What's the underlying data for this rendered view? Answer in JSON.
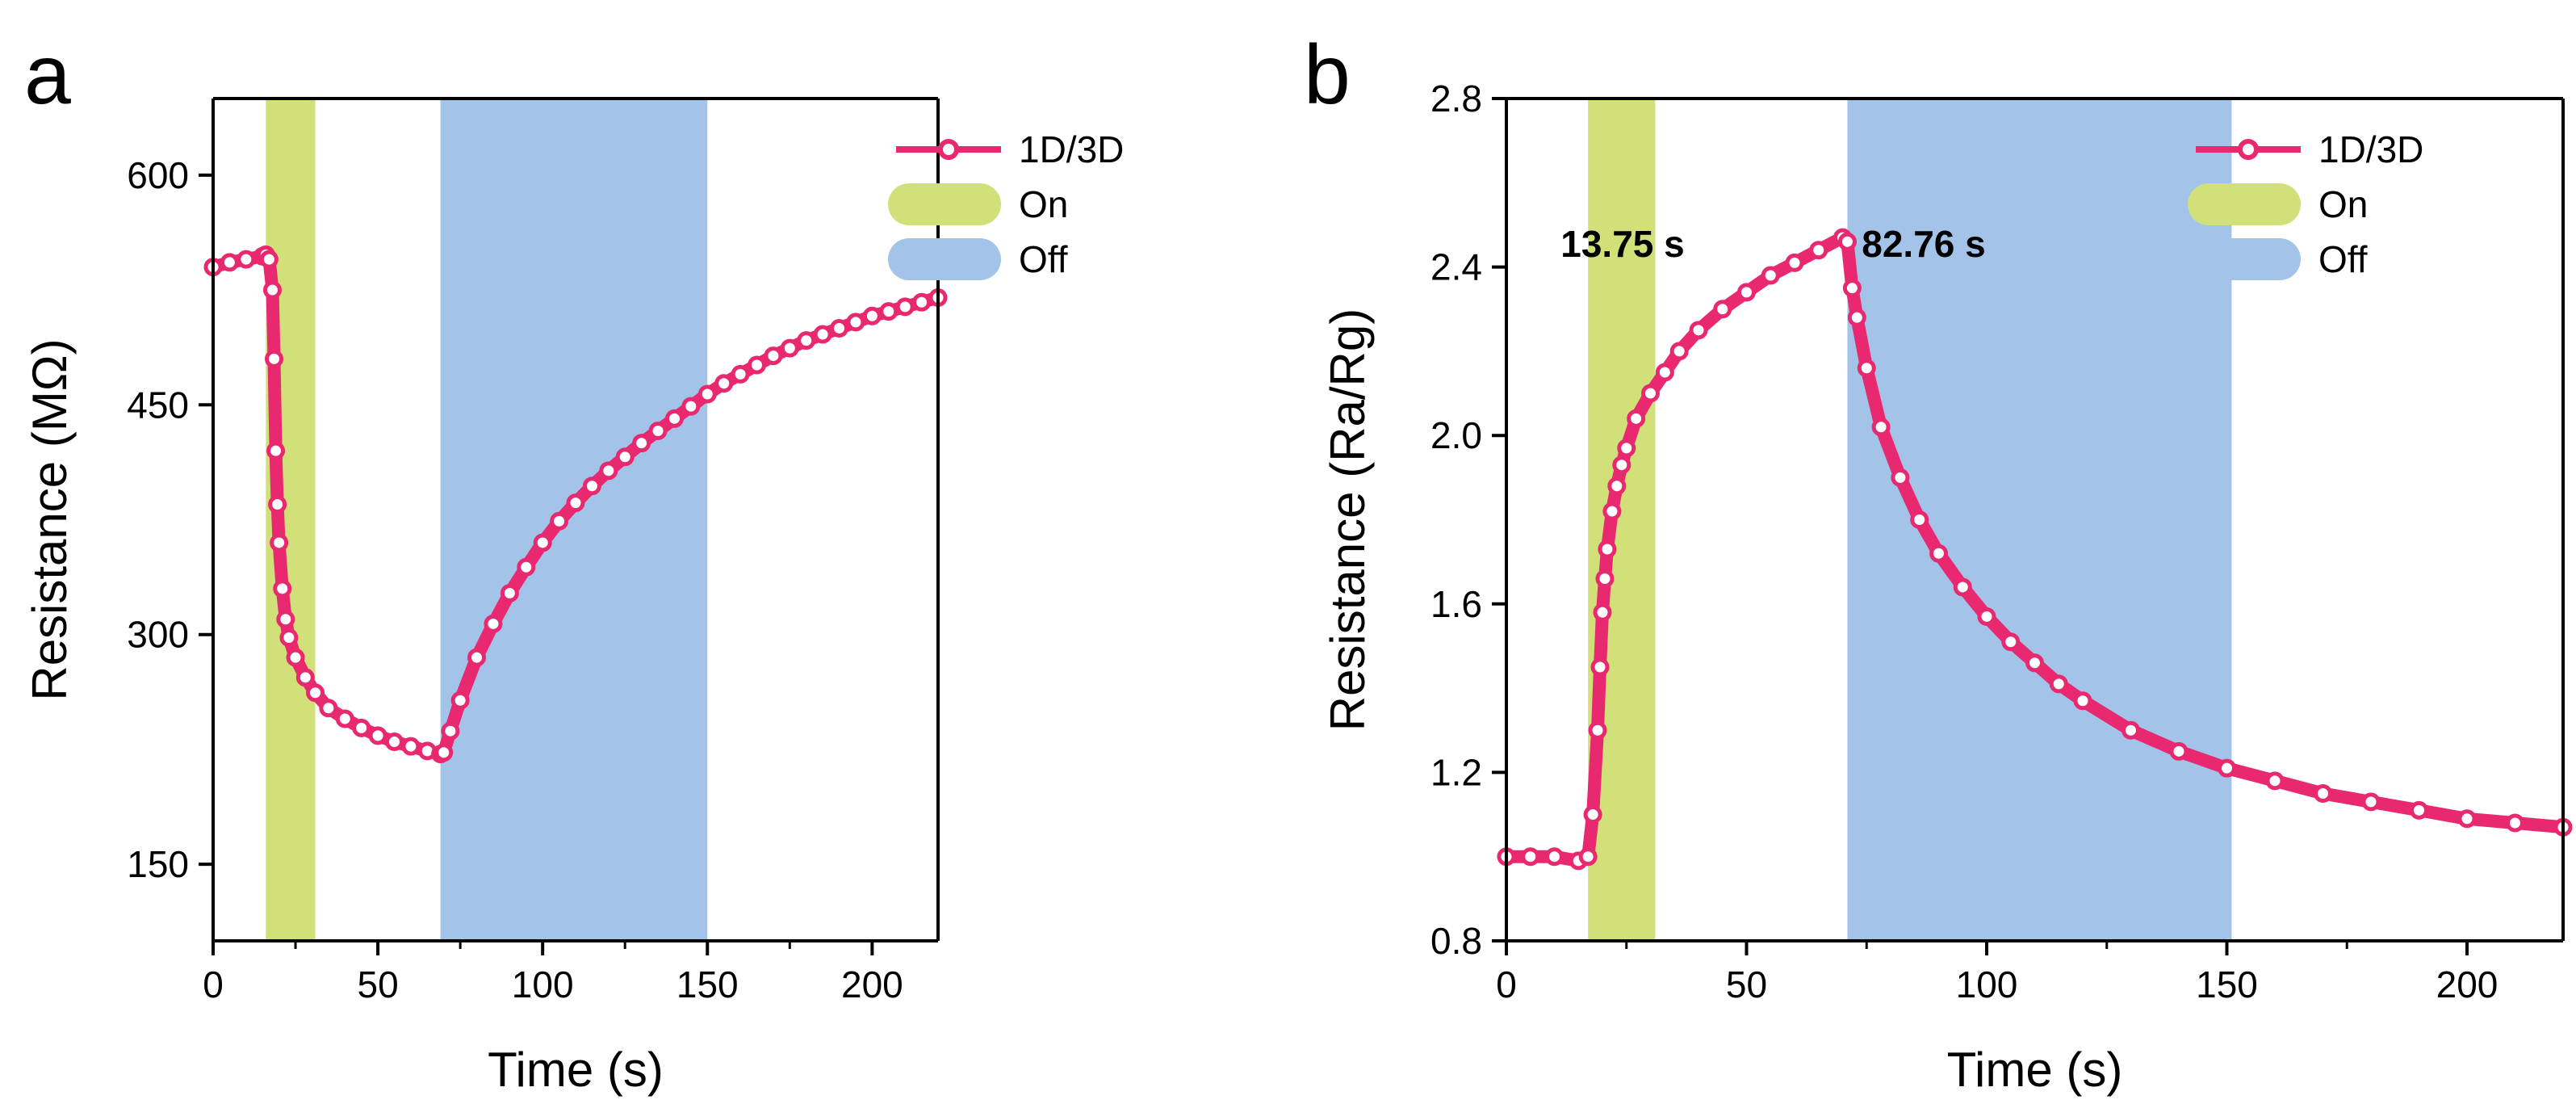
{
  "colors": {
    "series": "#e8296f",
    "on_band": "#d2e07a",
    "off_band": "#a3c4e8",
    "axis": "#000000"
  },
  "chart_data": [
    {
      "panel_label": "a",
      "type": "line",
      "xlabel": "Time (s)",
      "ylabel": "Resistance (MΩ)",
      "xlim": [
        0,
        220
      ],
      "ylim": [
        100,
        650
      ],
      "xticks": [
        0,
        50,
        100,
        150,
        200
      ],
      "yticks": [
        150,
        300,
        450,
        600
      ],
      "grid": false,
      "legend_position": "top-right",
      "legend": {
        "series": "1D/3D",
        "on": "On",
        "off": "Off"
      },
      "bands": [
        {
          "kind": "on",
          "x": [
            16,
            31
          ]
        },
        {
          "kind": "off",
          "x": [
            69,
            150
          ]
        }
      ],
      "annotations": [],
      "series": [
        {
          "name": "1D/3D",
          "x": [
            0,
            5,
            10,
            15,
            16,
            17,
            18,
            18.5,
            19,
            19.5,
            20,
            21,
            22,
            23,
            25,
            28,
            31,
            35,
            40,
            45,
            50,
            55,
            60,
            65,
            69,
            70,
            72,
            75,
            80,
            85,
            90,
            95,
            100,
            105,
            110,
            115,
            120,
            125,
            130,
            135,
            140,
            145,
            150,
            155,
            160,
            165,
            170,
            175,
            180,
            185,
            190,
            195,
            200,
            205,
            210,
            215,
            220
          ],
          "y": [
            540,
            543,
            545,
            547,
            548,
            545,
            525,
            480,
            420,
            385,
            360,
            330,
            310,
            298,
            285,
            272,
            262,
            252,
            245,
            239,
            234,
            230,
            227,
            224,
            222,
            223,
            237,
            257,
            285,
            307,
            327,
            344,
            360,
            374,
            386,
            397,
            407,
            416,
            425,
            433,
            441,
            449,
            457,
            464,
            470,
            476,
            482,
            487,
            492,
            496,
            500,
            504,
            508,
            511,
            514,
            517,
            520
          ]
        }
      ]
    },
    {
      "panel_label": "b",
      "type": "line",
      "xlabel": "Time (s)",
      "ylabel": "Resistance (Ra/Rg)",
      "xlim": [
        0,
        220
      ],
      "ylim": [
        0.8,
        2.8
      ],
      "xticks": [
        0,
        50,
        100,
        150,
        200
      ],
      "yticks": [
        0.8,
        1.2,
        1.6,
        2.0,
        2.4,
        2.8
      ],
      "grid": false,
      "legend_position": "top-right",
      "legend": {
        "series": "1D/3D",
        "on": "On",
        "off": "Off"
      },
      "bands": [
        {
          "kind": "on",
          "x": [
            17,
            31
          ]
        },
        {
          "kind": "off",
          "x": [
            71,
            151
          ]
        }
      ],
      "annotations": [
        "13.75 s",
        "82.76 s"
      ],
      "series": [
        {
          "name": "1D/3D",
          "x": [
            0,
            5,
            10,
            15,
            17,
            18,
            19,
            19.5,
            20,
            20.5,
            21,
            22,
            23,
            24,
            25,
            27,
            30,
            33,
            36,
            40,
            45,
            50,
            55,
            60,
            65,
            70,
            71,
            72,
            73,
            75,
            78,
            82,
            86,
            90,
            95,
            100,
            105,
            110,
            115,
            120,
            130,
            140,
            150,
            160,
            170,
            180,
            190,
            200,
            210,
            220
          ],
          "y": [
            1.0,
            1.0,
            1.0,
            0.99,
            1.0,
            1.1,
            1.3,
            1.45,
            1.58,
            1.66,
            1.73,
            1.82,
            1.88,
            1.93,
            1.97,
            2.04,
            2.1,
            2.15,
            2.2,
            2.25,
            2.3,
            2.34,
            2.38,
            2.41,
            2.44,
            2.47,
            2.46,
            2.35,
            2.28,
            2.16,
            2.02,
            1.9,
            1.8,
            1.72,
            1.64,
            1.57,
            1.51,
            1.46,
            1.41,
            1.37,
            1.3,
            1.25,
            1.21,
            1.18,
            1.15,
            1.13,
            1.11,
            1.09,
            1.08,
            1.07
          ]
        }
      ]
    }
  ]
}
